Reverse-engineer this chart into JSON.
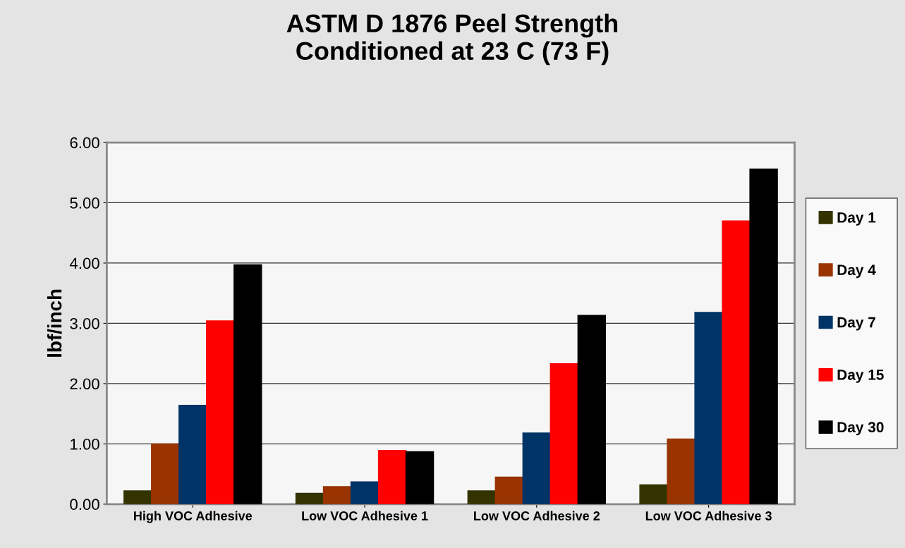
{
  "chart_data": {
    "type": "bar",
    "title": "ASTM D 1876 Peel Strength\nConditioned at 23 C (73 F)",
    "ylabel": "lbf/inch",
    "categories": [
      "High VOC Adhesive",
      "Low VOC Adhesive 1",
      "Low VOC Adhesive 2",
      "Low VOC Adhesive 3"
    ],
    "series": [
      {
        "name": "Day 1",
        "color": "#333300",
        "values": [
          0.22,
          0.18,
          0.22,
          0.32
        ]
      },
      {
        "name": "Day 4",
        "color": "#993300",
        "values": [
          1.0,
          0.29,
          0.45,
          1.08
        ]
      },
      {
        "name": "Day 7",
        "color": "#003366",
        "values": [
          1.64,
          0.37,
          1.18,
          3.18
        ]
      },
      {
        "name": "Day 15",
        "color": "#ff0000",
        "values": [
          3.04,
          0.89,
          2.33,
          4.7
        ]
      },
      {
        "name": "Day 30",
        "color": "#000000",
        "values": [
          3.97,
          0.87,
          3.13,
          5.56
        ]
      }
    ],
    "ylim": [
      0,
      6
    ],
    "yticks": [
      {
        "value": 0,
        "label": "0.00"
      },
      {
        "value": 1,
        "label": "1.00"
      },
      {
        "value": 2,
        "label": "2.00"
      },
      {
        "value": 3,
        "label": "3.00"
      },
      {
        "value": 4,
        "label": "4.00"
      },
      {
        "value": 5,
        "label": "5.00"
      },
      {
        "value": 6,
        "label": "6.00"
      }
    ],
    "grid": "y",
    "legend": "right"
  }
}
